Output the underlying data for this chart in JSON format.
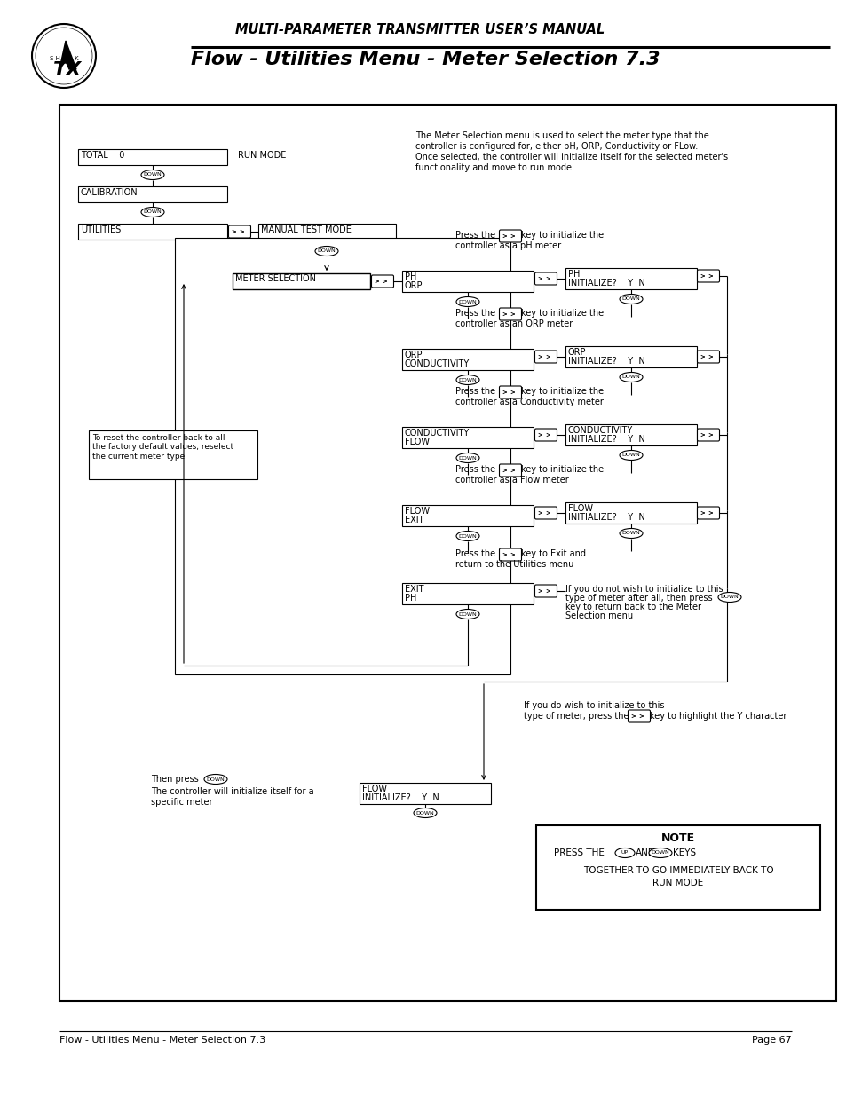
{
  "page_title_small": "MULTI-PARAMETER TRANSMITTER USER’S MANUAL",
  "page_title_large": "Flow - Utilities Menu - Meter Selection 7.3",
  "footer_left": "Flow - Utilities Menu - Meter Selection 7.3",
  "footer_right": "Page 67",
  "intro_line1": "The Meter Selection menu is used to select the meter type that the",
  "intro_line2": "controller is configured for, either pH, ORP, Conductivity or FLow.",
  "intro_line3": "Once selected, the controller will initialize itself for the selected meter's",
  "intro_line4": "functionality and move to run mode.",
  "reset_note": "To reset the controller back to all\nthe factory default values, reselect\nthe current meter type",
  "ph_press": "Press the",
  "ph_press2": "key to initialize the",
  "ph_press3": "controller as a pH meter.",
  "orp_press2": "key to initialize the",
  "orp_press3": "controller as an ORP meter",
  "cond_press2": "key to initialize the",
  "cond_press3": "controller as a Conductivity meter",
  "flow_press2": "key to initialize the",
  "flow_press3": "controller as a Flow meter",
  "exit_press2": "key to Exit and",
  "exit_press3": "return to the Utilities menu",
  "no_wish1": "If you do not wish to initialize to this",
  "no_wish2": "type of meter after all, then press",
  "no_wish3": "key to return back to the Meter",
  "no_wish4": "Selection menu",
  "do_wish1": "If you do wish to initialize to this",
  "do_wish2": "type of meter, press the",
  "do_wish3": "key to highlight the Y character",
  "then_press1": "Then press",
  "then_press2": "The controller will initialize itself for a",
  "then_press3": "specific meter",
  "note_title": "NOTE",
  "note_line1": "PRESS THE",
  "note_and": "AND",
  "note_keys": "KEYS",
  "note_line2": "TOGETHER TO GO IMMEDIATELY BACK TO",
  "note_line3": "RUN MODE"
}
